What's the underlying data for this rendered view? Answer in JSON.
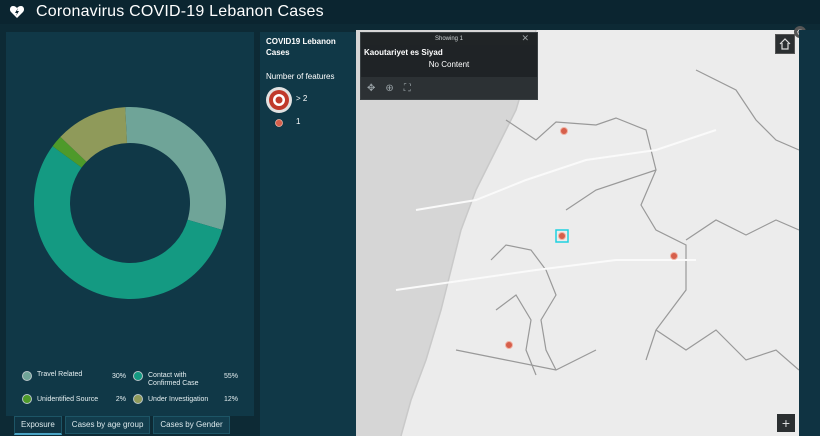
{
  "header": {
    "title": "Coronavirus COVID-19 Lebanon Cases"
  },
  "chart_data": {
    "type": "pie",
    "categories": [
      "Travel Related",
      "Contact with Confirmed Case",
      "Unidentified Source",
      "Under Investigation"
    ],
    "values": [
      30,
      55,
      2,
      12
    ],
    "value_labels": [
      "30%",
      "55%",
      "2%",
      "12%"
    ],
    "colors": [
      "#6fa498",
      "#149a82",
      "#4e9a2a",
      "#8f9a5a"
    ],
    "legend_position": "bottom"
  },
  "legend": {
    "items": [
      {
        "label": "Travel Related",
        "value": "30%"
      },
      {
        "label": "Contact with Confirmed Case",
        "value": "55%"
      },
      {
        "label": "Unidentified Source",
        "value": "2%"
      },
      {
        "label": "Under Investigation",
        "value": "12%"
      }
    ]
  },
  "tabs": [
    {
      "label": "Exposure"
    },
    {
      "label": "Cases by age group"
    },
    {
      "label": "Cases by Gender"
    }
  ],
  "map_legend": {
    "title": "COVID19 Lebanon Cases",
    "subtitle": "Number of features",
    "classes": [
      {
        "label": "> 2"
      },
      {
        "label": "1"
      }
    ]
  },
  "popup": {
    "header": "Showing 1",
    "feature_name": "Kaoutariyet es Siyad",
    "content": "No Content"
  },
  "icons": {
    "logo": "heart-lightning-icon",
    "home": "home-icon",
    "zoom": "plus-icon",
    "settings": "gear-icon"
  }
}
